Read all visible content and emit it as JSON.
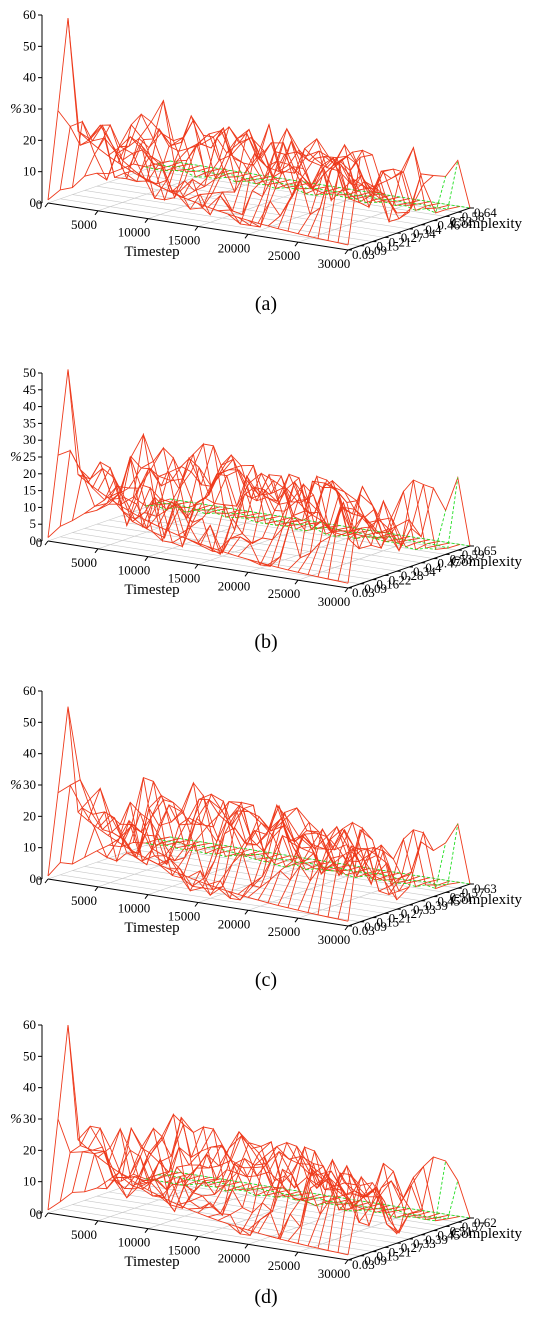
{
  "colors": {
    "surface": "#ee3a1c",
    "highlight": "#22dd22",
    "grid": "#c8c8c8",
    "axis": "#000000"
  },
  "chart_data": [
    {
      "type": "surface3d",
      "caption": "(a)",
      "xlabel": "Timestep",
      "ylabel": "Complexity",
      "zlabel": "%",
      "x_ticks": [
        "0",
        "5000",
        "10000",
        "15000",
        "20000",
        "25000",
        "30000"
      ],
      "y_ticks": [
        "0.03",
        "0.09",
        "0.15",
        "0.21",
        "0.27",
        "0.34",
        "0.4",
        "0.46",
        "0.52",
        "0.58",
        "0.64"
      ],
      "z_ticks": [
        "0",
        "10",
        "20",
        "30",
        "40",
        "50",
        "60"
      ],
      "zlim": [
        0,
        60
      ],
      "peak": 60,
      "seed": 11
    },
    {
      "type": "surface3d",
      "caption": "(b)",
      "xlabel": "Timestep",
      "ylabel": "Complexity",
      "zlabel": "%",
      "x_ticks": [
        "0",
        "5000",
        "10000",
        "15000",
        "20000",
        "25000",
        "30000"
      ],
      "y_ticks": [
        "0.03",
        "0.09",
        "0.16",
        "0.22",
        "0.28",
        "0.34",
        "0.4",
        "0.47",
        "0.53",
        "0.59",
        "0.65"
      ],
      "z_ticks": [
        "0",
        "5",
        "10",
        "15",
        "20",
        "25",
        "30",
        "35",
        "40",
        "45",
        "50"
      ],
      "zlim": [
        0,
        50
      ],
      "peak": 52,
      "seed": 23
    },
    {
      "type": "surface3d",
      "caption": "(c)",
      "xlabel": "Timestep",
      "ylabel": "Complexity",
      "zlabel": "%",
      "x_ticks": [
        "0",
        "5000",
        "10000",
        "15000",
        "20000",
        "25000",
        "30000"
      ],
      "y_ticks": [
        "0.03",
        "0.09",
        "0.15",
        "0.21",
        "0.27",
        "0.33",
        "0.39",
        "0.45",
        "0.51",
        "0.57",
        "0.63"
      ],
      "z_ticks": [
        "0",
        "10",
        "20",
        "30",
        "40",
        "50",
        "60"
      ],
      "zlim": [
        0,
        60
      ],
      "peak": 56,
      "seed": 37
    },
    {
      "type": "surface3d",
      "caption": "(d)",
      "xlabel": "Timestep",
      "ylabel": "Complexity",
      "zlabel": "%",
      "x_ticks": [
        "0",
        "5000",
        "10000",
        "15000",
        "20000",
        "25000",
        "30000"
      ],
      "y_ticks": [
        "0.03",
        "0.09",
        "0.15",
        "0.21",
        "0.27",
        "0.33",
        "0.39",
        "0.45",
        "0.51",
        "0.57",
        "0.62"
      ],
      "z_ticks": [
        "0",
        "10",
        "20",
        "30",
        "40",
        "50",
        "60"
      ],
      "zlim": [
        0,
        60
      ],
      "peak": 61,
      "seed": 53
    }
  ]
}
